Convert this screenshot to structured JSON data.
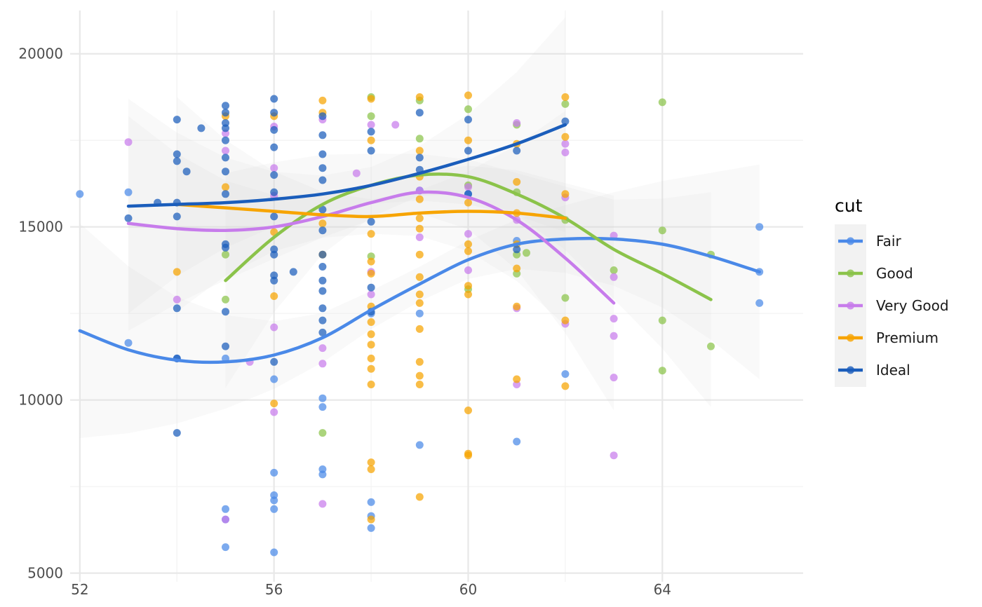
{
  "chart_data": {
    "type": "scatter",
    "title": "",
    "xlabel": "",
    "ylabel": "",
    "xlim": [
      51.8,
      66.9
    ],
    "ylim": [
      4750,
      21250
    ],
    "x_ticks": [
      52,
      56,
      60,
      64
    ],
    "x_tick_labels": [
      "52",
      "56",
      "60",
      "64"
    ],
    "y_ticks": [
      5000,
      10000,
      15000,
      20000
    ],
    "y_tick_labels": [
      "5000",
      "10000",
      "15000",
      "20000"
    ],
    "grid": true,
    "smoothing": "loess with confidence band",
    "legend": {
      "title": "cut",
      "position": "right",
      "entries": [
        "Fair",
        "Good",
        "Very Good",
        "Premium",
        "Ideal"
      ]
    },
    "series": [
      {
        "name": "Fair",
        "color": "#4A89E8",
        "points": [
          [
            52,
            15950
          ],
          [
            53,
            16000
          ],
          [
            53,
            11650
          ],
          [
            54,
            11200
          ],
          [
            55,
            11200
          ],
          [
            55,
            6850
          ],
          [
            55,
            6550
          ],
          [
            55,
            5750
          ],
          [
            56,
            10600
          ],
          [
            56,
            7900
          ],
          [
            56,
            7250
          ],
          [
            56,
            7100
          ],
          [
            56,
            6850
          ],
          [
            56,
            5600
          ],
          [
            57,
            10050
          ],
          [
            57,
            9800
          ],
          [
            57,
            8000
          ],
          [
            57,
            7850
          ],
          [
            58,
            12500
          ],
          [
            58,
            7050
          ],
          [
            58,
            6650
          ],
          [
            58,
            6300
          ],
          [
            59,
            8700
          ],
          [
            59,
            12500
          ],
          [
            59,
            16050
          ],
          [
            60,
            15950
          ],
          [
            61,
            14600
          ],
          [
            61,
            8800
          ],
          [
            62,
            10750
          ],
          [
            66,
            15000
          ],
          [
            66,
            13700
          ],
          [
            66,
            12800
          ]
        ],
        "smooth": [
          [
            52,
            12000
          ],
          [
            53,
            11450
          ],
          [
            54,
            11150
          ],
          [
            55,
            11100
          ],
          [
            56,
            11300
          ],
          [
            57,
            11800
          ],
          [
            58,
            12600
          ],
          [
            59,
            13350
          ],
          [
            60,
            14050
          ],
          [
            61,
            14500
          ],
          [
            62,
            14650
          ],
          [
            63,
            14650
          ],
          [
            64,
            14500
          ],
          [
            65,
            14150
          ],
          [
            66,
            13700
          ]
        ]
      },
      {
        "name": "Good",
        "color": "#8BC34A",
        "points": [
          [
            55,
            14200
          ],
          [
            55,
            12900
          ],
          [
            57,
            9050
          ],
          [
            58,
            18750
          ],
          [
            58,
            18200
          ],
          [
            58,
            14150
          ],
          [
            59,
            18650
          ],
          [
            59,
            17550
          ],
          [
            60,
            18400
          ],
          [
            60,
            16200
          ],
          [
            60,
            13200
          ],
          [
            61,
            17950
          ],
          [
            61,
            16000
          ],
          [
            61,
            14200
          ],
          [
            61,
            13650
          ],
          [
            61.2,
            14250
          ],
          [
            62,
            18550
          ],
          [
            62,
            15200
          ],
          [
            62,
            12950
          ],
          [
            63,
            13750
          ],
          [
            64,
            18600
          ],
          [
            64,
            14900
          ],
          [
            64,
            12300
          ],
          [
            64,
            10850
          ],
          [
            65,
            14200
          ],
          [
            65,
            11550
          ]
        ],
        "smooth": [
          [
            55,
            13450
          ],
          [
            56,
            14700
          ],
          [
            57,
            15650
          ],
          [
            58,
            16200
          ],
          [
            59,
            16500
          ],
          [
            60,
            16450
          ],
          [
            61,
            15950
          ],
          [
            62,
            15250
          ],
          [
            63,
            14350
          ],
          [
            64,
            13650
          ],
          [
            65,
            12900
          ]
        ]
      },
      {
        "name": "Very Good",
        "color": "#C77CEB",
        "points": [
          [
            53,
            17450
          ],
          [
            54,
            12900
          ],
          [
            55,
            17700
          ],
          [
            55,
            17200
          ],
          [
            55,
            6550
          ],
          [
            55.5,
            11100
          ],
          [
            56,
            17900
          ],
          [
            56,
            16700
          ],
          [
            56,
            15900
          ],
          [
            56,
            12100
          ],
          [
            56,
            9650
          ],
          [
            57,
            18100
          ],
          [
            57,
            11500
          ],
          [
            57,
            11050
          ],
          [
            57,
            7000
          ],
          [
            57.7,
            16550
          ],
          [
            58,
            17950
          ],
          [
            58,
            13700
          ],
          [
            58,
            13050
          ],
          [
            58.5,
            17950
          ],
          [
            59,
            16050
          ],
          [
            59,
            14700
          ],
          [
            60,
            16150
          ],
          [
            60,
            14800
          ],
          [
            60,
            13750
          ],
          [
            61,
            18000
          ],
          [
            61,
            15200
          ],
          [
            61,
            12650
          ],
          [
            61,
            10450
          ],
          [
            62,
            17400
          ],
          [
            62,
            17150
          ],
          [
            62,
            15850
          ],
          [
            62,
            12200
          ],
          [
            63,
            14750
          ],
          [
            63,
            13550
          ],
          [
            63,
            12350
          ],
          [
            63,
            11850
          ],
          [
            63,
            10650
          ],
          [
            63,
            8400
          ]
        ],
        "smooth": [
          [
            53,
            15100
          ],
          [
            54,
            14950
          ],
          [
            55,
            14900
          ],
          [
            56,
            15000
          ],
          [
            57,
            15300
          ],
          [
            58,
            15700
          ],
          [
            59,
            16000
          ],
          [
            60,
            15850
          ],
          [
            61,
            15200
          ],
          [
            62,
            14100
          ],
          [
            63,
            12800
          ]
        ]
      },
      {
        "name": "Premium",
        "color": "#F7A400",
        "points": [
          [
            54,
            13700
          ],
          [
            55,
            18200
          ],
          [
            55,
            16150
          ],
          [
            56,
            18200
          ],
          [
            56,
            14850
          ],
          [
            56,
            13000
          ],
          [
            56,
            9900
          ],
          [
            57,
            18650
          ],
          [
            57,
            18300
          ],
          [
            57,
            15100
          ],
          [
            57,
            14200
          ],
          [
            58,
            18700
          ],
          [
            58,
            17500
          ],
          [
            58,
            14800
          ],
          [
            58,
            14000
          ],
          [
            58,
            13650
          ],
          [
            58,
            12700
          ],
          [
            58,
            12250
          ],
          [
            58,
            11900
          ],
          [
            58,
            11600
          ],
          [
            58,
            11200
          ],
          [
            58,
            10900
          ],
          [
            58,
            10450
          ],
          [
            58,
            8200
          ],
          [
            58,
            8000
          ],
          [
            58,
            6550
          ],
          [
            59,
            18750
          ],
          [
            59,
            17200
          ],
          [
            59,
            16450
          ],
          [
            59,
            15800
          ],
          [
            59,
            15250
          ],
          [
            59,
            14950
          ],
          [
            59,
            14200
          ],
          [
            59,
            13550
          ],
          [
            59,
            13050
          ],
          [
            59,
            12800
          ],
          [
            59,
            12050
          ],
          [
            59,
            11100
          ],
          [
            59,
            10700
          ],
          [
            59,
            10450
          ],
          [
            59,
            7200
          ],
          [
            60,
            18800
          ],
          [
            60,
            17500
          ],
          [
            60,
            15700
          ],
          [
            60,
            14500
          ],
          [
            60,
            14300
          ],
          [
            60,
            13300
          ],
          [
            60,
            13050
          ],
          [
            60,
            9700
          ],
          [
            60,
            8450
          ],
          [
            60,
            8400
          ],
          [
            61,
            17400
          ],
          [
            61,
            16300
          ],
          [
            61,
            15400
          ],
          [
            61,
            14500
          ],
          [
            61,
            13800
          ],
          [
            61,
            12700
          ],
          [
            61,
            10600
          ],
          [
            62,
            18750
          ],
          [
            62,
            17600
          ],
          [
            62,
            15950
          ],
          [
            62,
            12300
          ],
          [
            62,
            10400
          ]
        ],
        "smooth": [
          [
            54,
            15650
          ],
          [
            55,
            15550
          ],
          [
            56,
            15450
          ],
          [
            57,
            15350
          ],
          [
            58,
            15300
          ],
          [
            59,
            15400
          ],
          [
            60,
            15450
          ],
          [
            61,
            15400
          ],
          [
            62,
            15250
          ]
        ]
      },
      {
        "name": "Ideal",
        "color": "#1A5DBB",
        "points": [
          [
            53,
            15250
          ],
          [
            53.6,
            15700
          ],
          [
            54,
            18100
          ],
          [
            54,
            17100
          ],
          [
            54,
            16900
          ],
          [
            54,
            15700
          ],
          [
            54,
            15300
          ],
          [
            54,
            12650
          ],
          [
            54,
            11200
          ],
          [
            54,
            9050
          ],
          [
            54.2,
            16600
          ],
          [
            54.5,
            17850
          ],
          [
            55,
            18500
          ],
          [
            55,
            18300
          ],
          [
            55,
            18000
          ],
          [
            55,
            17850
          ],
          [
            55,
            17500
          ],
          [
            55,
            17000
          ],
          [
            55,
            16600
          ],
          [
            55,
            15950
          ],
          [
            55,
            14500
          ],
          [
            55,
            14400
          ],
          [
            55,
            12550
          ],
          [
            55,
            11550
          ],
          [
            56,
            18700
          ],
          [
            56,
            18300
          ],
          [
            56,
            17800
          ],
          [
            56,
            17300
          ],
          [
            56,
            16500
          ],
          [
            56,
            16000
          ],
          [
            56,
            15300
          ],
          [
            56,
            14350
          ],
          [
            56,
            14200
          ],
          [
            56,
            13600
          ],
          [
            56,
            13450
          ],
          [
            56,
            11100
          ],
          [
            56.4,
            13700
          ],
          [
            57,
            18200
          ],
          [
            57,
            17650
          ],
          [
            57,
            17100
          ],
          [
            57,
            16700
          ],
          [
            57,
            16350
          ],
          [
            57,
            15500
          ],
          [
            57,
            14900
          ],
          [
            57,
            14200
          ],
          [
            57,
            13850
          ],
          [
            57,
            13450
          ],
          [
            57,
            13150
          ],
          [
            57,
            12650
          ],
          [
            57,
            12300
          ],
          [
            57,
            11950
          ],
          [
            58,
            17750
          ],
          [
            58,
            17200
          ],
          [
            58,
            15150
          ],
          [
            58,
            13250
          ],
          [
            58,
            12550
          ],
          [
            59,
            18300
          ],
          [
            59,
            17000
          ],
          [
            59,
            16650
          ],
          [
            60,
            18100
          ],
          [
            60,
            17200
          ],
          [
            60,
            15950
          ],
          [
            61,
            17200
          ],
          [
            61,
            14350
          ],
          [
            62,
            18050
          ]
        ],
        "smooth": [
          [
            53,
            15600
          ],
          [
            54,
            15650
          ],
          [
            55,
            15700
          ],
          [
            56,
            15800
          ],
          [
            57,
            15950
          ],
          [
            58,
            16200
          ],
          [
            59,
            16550
          ],
          [
            60,
            16950
          ],
          [
            61,
            17400
          ],
          [
            62,
            17950
          ]
        ]
      }
    ]
  }
}
